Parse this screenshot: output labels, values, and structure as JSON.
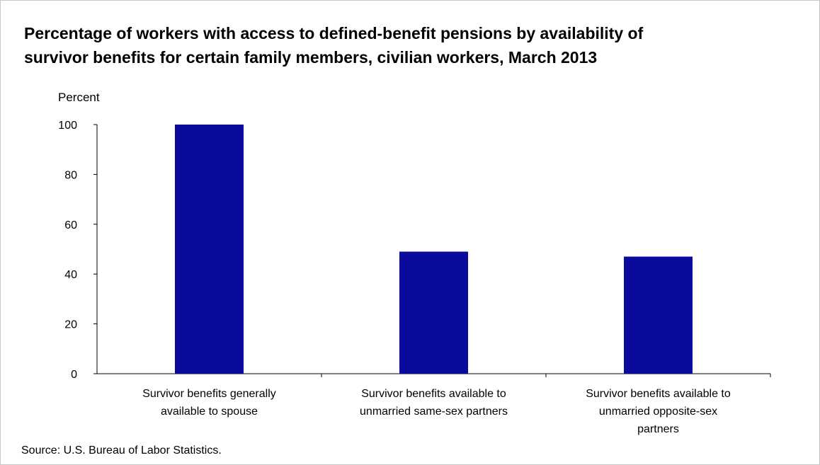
{
  "chart_data": {
    "type": "bar",
    "title_lines": [
      "Percentage of workers with access to defined-benefit pensions by availability of",
      "survivor benefits for certain family members, civilian workers, March 2013"
    ],
    "ylabel": "Percent",
    "xlabel": "",
    "ylim": [
      0,
      100
    ],
    "yticks": [
      0,
      20,
      40,
      60,
      80,
      100
    ],
    "grid": false,
    "bar_color": "#0a0a9c",
    "categories": [
      [
        "Survivor benefits generally",
        "available to spouse"
      ],
      [
        "Survivor benefits available to",
        "unmarried same-sex partners"
      ],
      [
        "Survivor benefits available to",
        "unmarried opposite-sex",
        "partners"
      ]
    ],
    "values": [
      100,
      49,
      47
    ],
    "source": "Source: U.S. Bureau of Labor Statistics."
  }
}
